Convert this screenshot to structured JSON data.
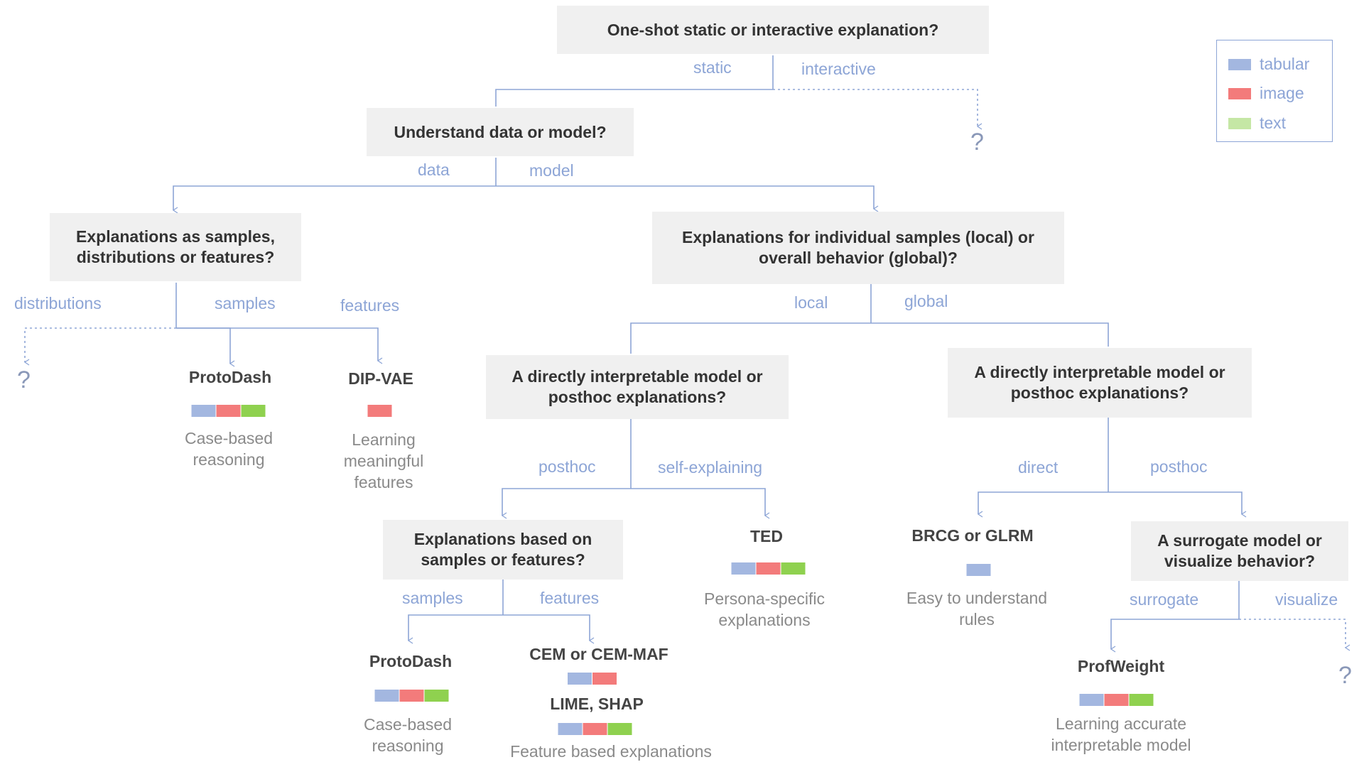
{
  "colors": {
    "tabular": "#a3b7e0",
    "image": "#f37b7b",
    "text": "#8fd14f",
    "text_legend": "#c5e7a5",
    "edge": "#8da5d6",
    "node_bg": "#f0f0f0"
  },
  "legend": {
    "items": [
      {
        "key": "tabular",
        "label": "tabular"
      },
      {
        "key": "image",
        "label": "image"
      },
      {
        "key": "text_legend",
        "label": "text"
      }
    ]
  },
  "questions": {
    "q_root": "One-shot static or interactive explanation?",
    "q_data_model": "Understand data or model?",
    "q_samples_dist_features": "Explanations as samples,\ndistributions or features?",
    "q_local_global": "Explanations for individual samples (local) or\noverall behavior (global)?",
    "q_local_direct": "A directly interpretable model or\nposthoc explanations?",
    "q_global_direct": "A directly interpretable model or\nposthoc explanations?",
    "q_samples_features": "Explanations based on\nsamples or features?",
    "q_surrogate": "A surrogate model or\nvisualize behavior?"
  },
  "edge_labels": {
    "static": "static",
    "interactive": "interactive",
    "data": "data",
    "model": "model",
    "distributions": "distributions",
    "samples_1": "samples",
    "features_1": "features",
    "local": "local",
    "global": "global",
    "posthoc_1": "posthoc",
    "self_explaining": "self-explaining",
    "direct": "direct",
    "posthoc_2": "posthoc",
    "samples_2": "samples",
    "features_2": "features",
    "surrogate": "surrogate",
    "visualize": "visualize"
  },
  "unknown": "?",
  "methods": {
    "protodash_1": {
      "name": "ProtoDash",
      "desc": "Case-based\nreasoning",
      "types": [
        "tabular",
        "image",
        "text"
      ]
    },
    "dipvae": {
      "name": "DIP-VAE",
      "desc": "Learning\nmeaningful\nfeatures",
      "types": [
        "image"
      ]
    },
    "ted": {
      "name": "TED",
      "desc": "Persona-specific\nexplanations",
      "types": [
        "tabular",
        "image",
        "text"
      ]
    },
    "brcg": {
      "name": "BRCG or GLRM",
      "desc": "Easy to understand\nrules",
      "types": [
        "tabular"
      ]
    },
    "protodash_2": {
      "name": "ProtoDash",
      "desc": "Case-based\nreasoning",
      "types": [
        "tabular",
        "image",
        "text"
      ]
    },
    "cem": {
      "name": "CEM or CEM-MAF",
      "types": [
        "tabular",
        "image"
      ]
    },
    "lime": {
      "name": "LIME, SHAP",
      "desc": "Feature based explanations",
      "types": [
        "tabular",
        "image",
        "text"
      ]
    },
    "profweight": {
      "name": "ProfWeight",
      "desc": "Learning accurate\ninterpretable model",
      "types": [
        "tabular",
        "image",
        "text"
      ]
    }
  }
}
